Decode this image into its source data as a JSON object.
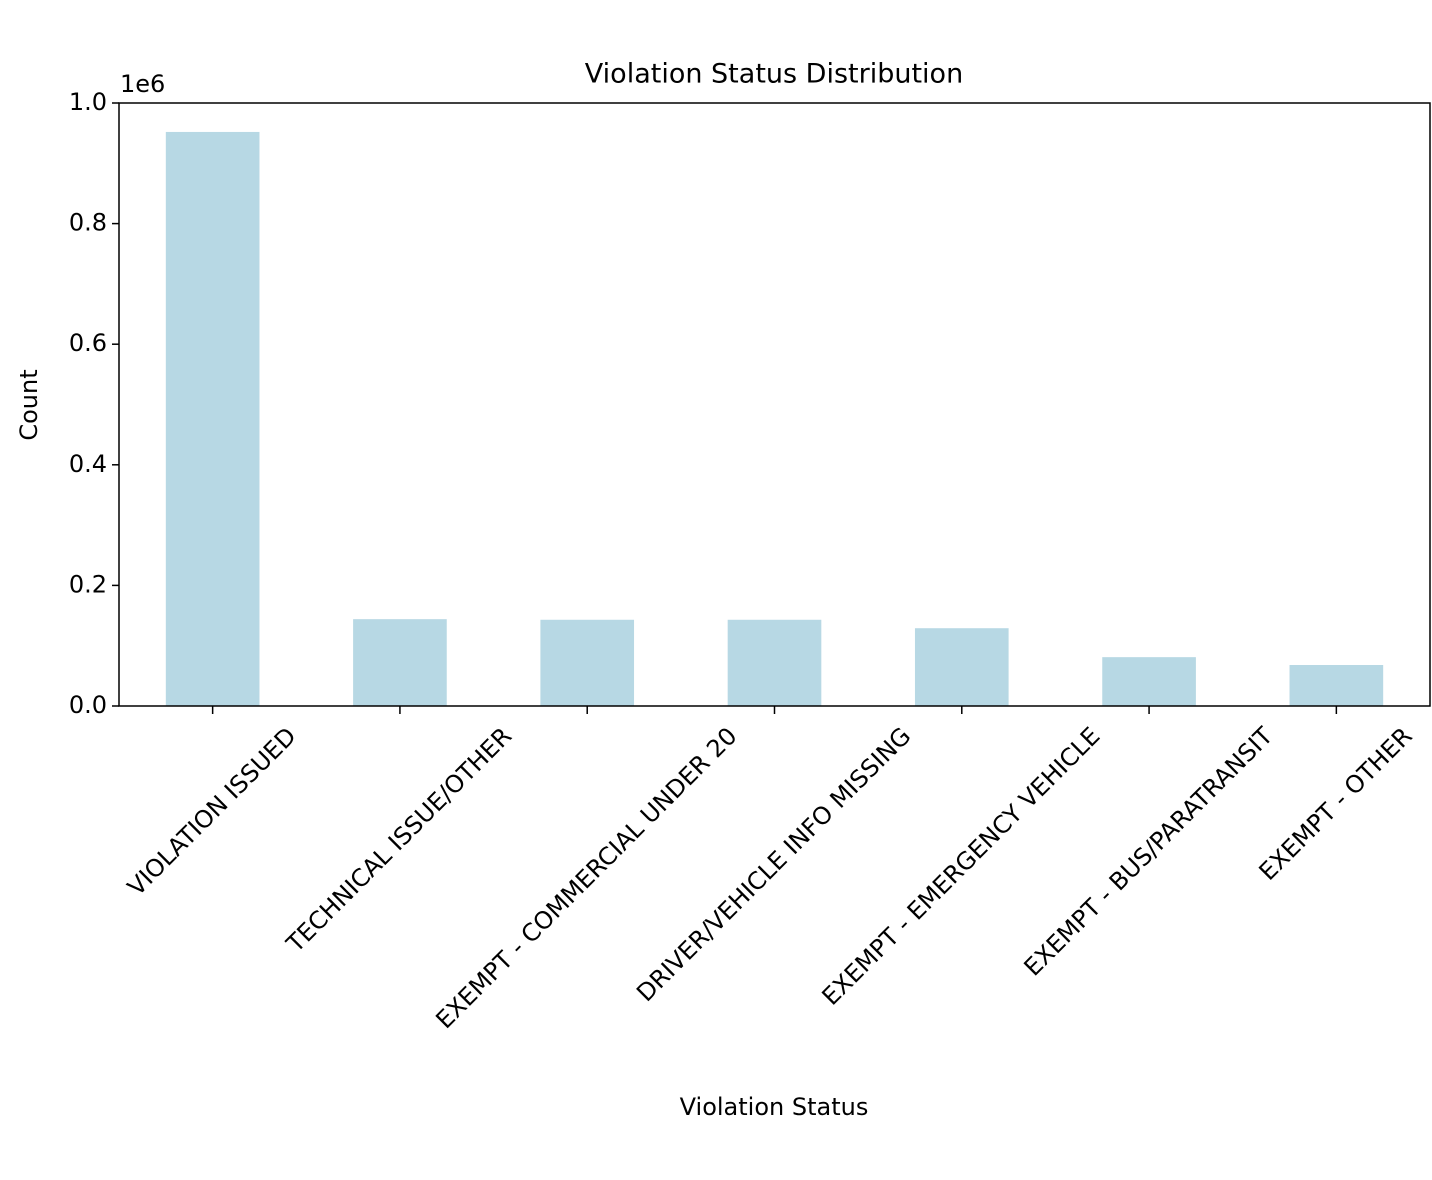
{
  "chart_data": {
    "type": "bar",
    "title": "Violation Status Distribution",
    "x_label": "Violation Status",
    "y_label": "Count",
    "y_offset_label": "1e6",
    "categories": [
      "VIOLATION ISSUED",
      "TECHNICAL ISSUE/OTHER",
      "EXEMPT - COMMERCIAL UNDER 20",
      "DRIVER/VEHICLE INFO MISSING",
      "EXEMPT - EMERGENCY VEHICLE",
      "EXEMPT - BUS/PARATRANSIT",
      "EXEMPT - OTHER"
    ],
    "values": [
      952000,
      144000,
      143000,
      143000,
      129000,
      81000,
      68000
    ],
    "color": "#b7d8e4",
    "ylim": [
      0,
      1000000
    ],
    "yticks": [
      {
        "value": 0,
        "label": "0.0"
      },
      {
        "value": 200000,
        "label": "0.2"
      },
      {
        "value": 400000,
        "label": "0.4"
      },
      {
        "value": 600000,
        "label": "0.6"
      },
      {
        "value": 800000,
        "label": "0.8"
      },
      {
        "value": 1000000,
        "label": "1.0"
      }
    ],
    "grid": false
  }
}
